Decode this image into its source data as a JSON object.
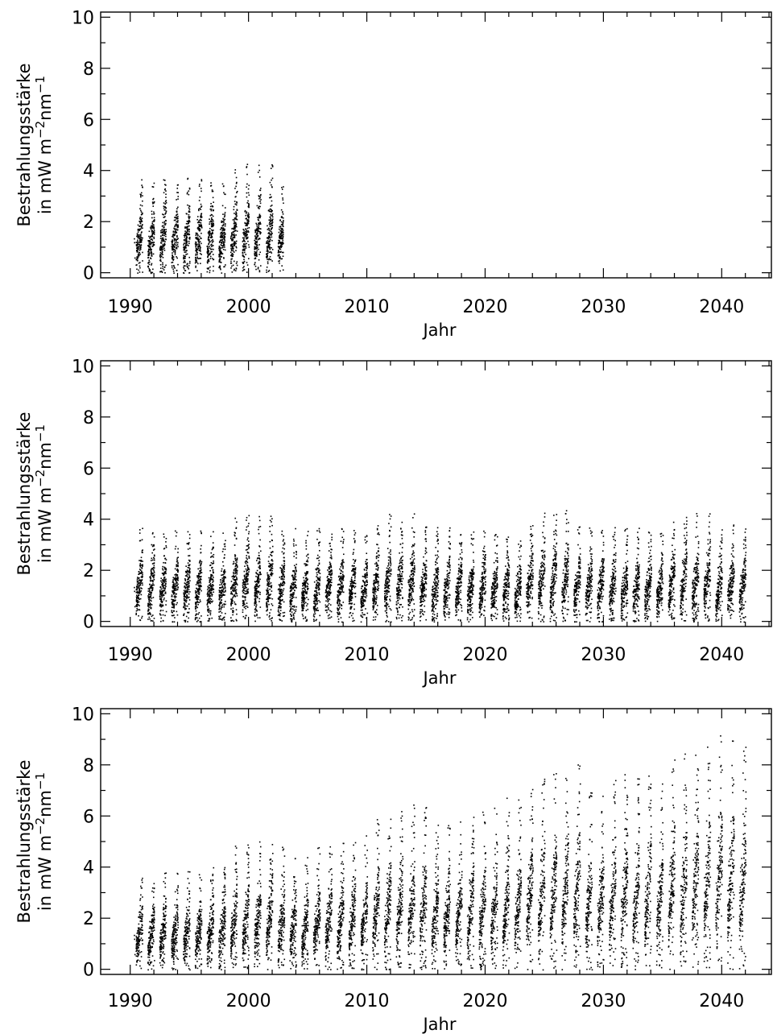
{
  "chart_data": [
    {
      "type": "scatter",
      "xlabel": "Jahr",
      "ylabel_line1": "Bestrahlungsstärke",
      "ylabel_line2_prefix": "in mW m",
      "ylabel_sup1": "−2",
      "ylabel_mid": "nm",
      "ylabel_sup2": "−1",
      "xlim": [
        1987.5,
        2044.2
      ],
      "ylim": [
        -0.2,
        10.2
      ],
      "xticks": [
        1990,
        2000,
        2010,
        2020,
        2030,
        2040
      ],
      "xtick_labels": [
        "1990",
        "2000",
        "2010",
        "2020",
        "2030",
        "2040"
      ],
      "yticks": [
        0,
        2,
        4,
        6,
        8,
        10
      ],
      "ytick_labels": [
        "0",
        "2",
        "4",
        "6",
        "8",
        "10"
      ],
      "grid": false,
      "data_range": [
        1990.3,
        2002.9
      ],
      "annual_max_by_year": [
        [
          1991,
          3.7
        ],
        [
          1992,
          3.6
        ],
        [
          1993,
          3.9
        ],
        [
          1994,
          3.6
        ],
        [
          1995,
          3.8
        ],
        [
          1996,
          3.8
        ],
        [
          1997,
          3.9
        ],
        [
          1998,
          3.5
        ],
        [
          1999,
          4.2
        ],
        [
          2000,
          4.3
        ],
        [
          2001,
          4.3
        ],
        [
          2002,
          4.4
        ],
        [
          2003,
          3.8
        ]
      ]
    },
    {
      "type": "scatter",
      "xlabel": "Jahr",
      "ylabel_line1": "Bestrahlungsstärke",
      "ylabel_line2_prefix": "in mW m",
      "ylabel_sup1": "−2",
      "ylabel_mid": "nm",
      "ylabel_sup2": "−1",
      "xlim": [
        1987.5,
        2044.2
      ],
      "ylim": [
        -0.2,
        10.2
      ],
      "xticks": [
        1990,
        2000,
        2010,
        2020,
        2030,
        2040
      ],
      "xtick_labels": [
        "1990",
        "2000",
        "2010",
        "2020",
        "2030",
        "2040"
      ],
      "yticks": [
        0,
        2,
        4,
        6,
        8,
        10
      ],
      "ytick_labels": [
        "0",
        "2",
        "4",
        "6",
        "8",
        "10"
      ],
      "grid": false,
      "data_range": [
        1990.3,
        2042.0
      ],
      "annual_max_by_year": [
        [
          1991,
          3.7
        ],
        [
          1992,
          3.6
        ],
        [
          1993,
          3.7
        ],
        [
          1994,
          3.6
        ],
        [
          1995,
          3.6
        ],
        [
          1996,
          3.6
        ],
        [
          1997,
          3.6
        ],
        [
          1998,
          3.5
        ],
        [
          1999,
          4.2
        ],
        [
          2000,
          4.3
        ],
        [
          2001,
          4.3
        ],
        [
          2002,
          4.4
        ],
        [
          2003,
          3.8
        ],
        [
          2004,
          3.7
        ],
        [
          2005,
          3.7
        ],
        [
          2006,
          3.7
        ],
        [
          2007,
          3.7
        ],
        [
          2008,
          3.7
        ],
        [
          2009,
          3.6
        ],
        [
          2010,
          3.5
        ],
        [
          2011,
          4.2
        ],
        [
          2012,
          4.3
        ],
        [
          2013,
          4.3
        ],
        [
          2014,
          4.4
        ],
        [
          2015,
          3.8
        ],
        [
          2016,
          3.7
        ],
        [
          2017,
          3.7
        ],
        [
          2018,
          3.7
        ],
        [
          2019,
          3.6
        ],
        [
          2020,
          3.6
        ],
        [
          2021,
          3.6
        ],
        [
          2022,
          3.6
        ],
        [
          2023,
          3.5
        ],
        [
          2024,
          4.2
        ],
        [
          2025,
          4.3
        ],
        [
          2026,
          4.3
        ],
        [
          2027,
          4.4
        ],
        [
          2028,
          3.8
        ],
        [
          2029,
          3.7
        ],
        [
          2030,
          3.7
        ],
        [
          2031,
          3.7
        ],
        [
          2032,
          3.7
        ],
        [
          2033,
          3.7
        ],
        [
          2034,
          3.6
        ],
        [
          2035,
          3.5
        ],
        [
          2036,
          4.2
        ],
        [
          2037,
          4.3
        ],
        [
          2038,
          4.3
        ],
        [
          2039,
          4.4
        ],
        [
          2040,
          3.8
        ],
        [
          2041,
          3.8
        ],
        [
          2042,
          3.8
        ]
      ]
    },
    {
      "type": "scatter",
      "xlabel": "Jahr",
      "ylabel_line1": "Bestrahlungsstärke",
      "ylabel_line2_prefix": "in mW m",
      "ylabel_sup1": "−2",
      "ylabel_mid": "nm",
      "ylabel_sup2": "−1",
      "xlim": [
        1987.5,
        2044.2
      ],
      "ylim": [
        -0.2,
        10.2
      ],
      "xticks": [
        1990,
        2000,
        2010,
        2020,
        2030,
        2040
      ],
      "xtick_labels": [
        "1990",
        "2000",
        "2010",
        "2020",
        "2030",
        "2040"
      ],
      "yticks": [
        0,
        2,
        4,
        6,
        8,
        10
      ],
      "ytick_labels": [
        "0",
        "2",
        "4",
        "6",
        "8",
        "10"
      ],
      "grid": false,
      "data_range": [
        1990.3,
        2042.0
      ],
      "annual_max_by_year": [
        [
          1991,
          3.7
        ],
        [
          1992,
          3.7
        ],
        [
          1993,
          4.0
        ],
        [
          1994,
          3.8
        ],
        [
          1995,
          3.9
        ],
        [
          1996,
          3.9
        ],
        [
          1997,
          4.1
        ],
        [
          1998,
          4.3
        ],
        [
          1999,
          4.9
        ],
        [
          2000,
          5.0
        ],
        [
          2001,
          5.1
        ],
        [
          2002,
          5.4
        ],
        [
          2003,
          4.9
        ],
        [
          2004,
          4.5
        ],
        [
          2005,
          4.6
        ],
        [
          2006,
          4.8
        ],
        [
          2007,
          4.9
        ],
        [
          2008,
          5.0
        ],
        [
          2009,
          5.2
        ],
        [
          2010,
          5.3
        ],
        [
          2011,
          6.0
        ],
        [
          2012,
          6.2
        ],
        [
          2013,
          6.4
        ],
        [
          2014,
          6.6
        ],
        [
          2015,
          6.8
        ],
        [
          2016,
          5.8
        ],
        [
          2017,
          5.7
        ],
        [
          2018,
          5.8
        ],
        [
          2019,
          6.3
        ],
        [
          2020,
          6.4
        ],
        [
          2021,
          6.5
        ],
        [
          2022,
          6.8
        ],
        [
          2023,
          6.7
        ],
        [
          2024,
          7.5
        ],
        [
          2025,
          7.7
        ],
        [
          2026,
          7.8
        ],
        [
          2027,
          8.0
        ],
        [
          2028,
          8.4
        ],
        [
          2029,
          7.2
        ],
        [
          2030,
          7.0
        ],
        [
          2031,
          7.6
        ],
        [
          2032,
          7.8
        ],
        [
          2033,
          7.8
        ],
        [
          2034,
          7.9
        ],
        [
          2035,
          7.5
        ],
        [
          2036,
          8.4
        ],
        [
          2037,
          8.6
        ],
        [
          2038,
          9.4
        ],
        [
          2039,
          9.6
        ],
        [
          2040,
          9.7
        ],
        [
          2041,
          9.0
        ],
        [
          2042,
          8.8
        ]
      ]
    }
  ]
}
